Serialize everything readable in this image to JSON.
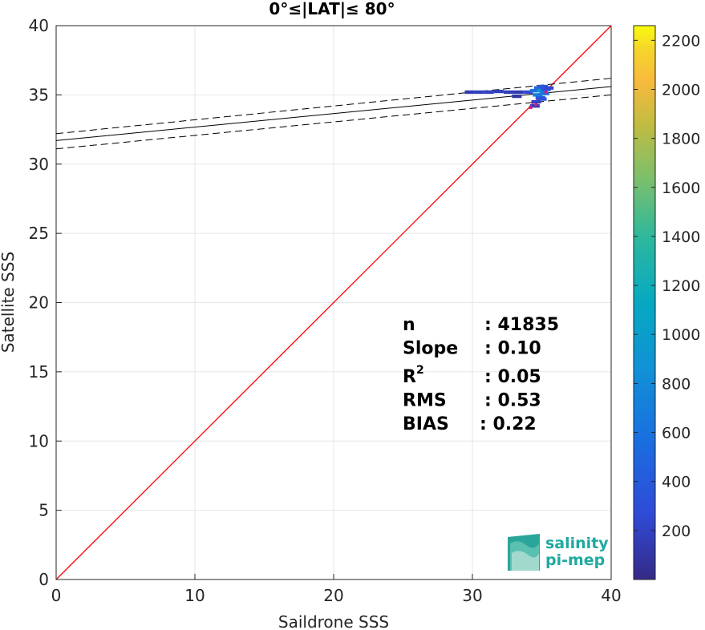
{
  "chart_data": {
    "type": "heatmap",
    "title": "0°≤|LAT|≤ 80°",
    "xlabel": "Saildrone SSS",
    "ylabel": "Satellite SSS",
    "xlim": [
      0,
      40
    ],
    "ylim": [
      0,
      40
    ],
    "xticks": [
      0,
      10,
      20,
      30,
      40
    ],
    "yticks": [
      0,
      5,
      10,
      15,
      20,
      25,
      30,
      35,
      40
    ],
    "grid": true,
    "one_to_one_line": {
      "color": "#ff0000",
      "x": [
        0,
        40
      ],
      "y": [
        0,
        40
      ]
    },
    "regression_line": {
      "x": [
        0,
        40
      ],
      "y": [
        31.7,
        35.6
      ],
      "color": "#000000"
    },
    "regression_bounds": [
      {
        "x": [
          0,
          40
        ],
        "y": [
          32.2,
          36.2
        ],
        "style": "dashed"
      },
      {
        "x": [
          0,
          40
        ],
        "y": [
          31.1,
          35.0
        ],
        "style": "dashed"
      }
    ],
    "density_cells": [
      {
        "x": 29.8,
        "y": 35.2,
        "count": 150
      },
      {
        "x": 30.5,
        "y": 35.2,
        "count": 180
      },
      {
        "x": 31.2,
        "y": 35.2,
        "count": 200
      },
      {
        "x": 31.9,
        "y": 35.25,
        "count": 180
      },
      {
        "x": 32.6,
        "y": 35.2,
        "count": 160
      },
      {
        "x": 33.3,
        "y": 35.2,
        "count": 140
      },
      {
        "x": 34.0,
        "y": 35.2,
        "count": 250
      },
      {
        "x": 34.5,
        "y": 35.3,
        "count": 600
      },
      {
        "x": 34.7,
        "y": 35.0,
        "count": 700
      },
      {
        "x": 34.8,
        "y": 35.5,
        "count": 500
      },
      {
        "x": 34.9,
        "y": 34.8,
        "count": 450
      },
      {
        "x": 35.0,
        "y": 35.3,
        "count": 900
      },
      {
        "x": 35.1,
        "y": 35.6,
        "count": 400
      },
      {
        "x": 35.2,
        "y": 35.1,
        "count": 650
      },
      {
        "x": 35.3,
        "y": 35.4,
        "count": 300
      },
      {
        "x": 35.5,
        "y": 35.5,
        "count": 250
      },
      {
        "x": 34.6,
        "y": 34.5,
        "count": 200
      },
      {
        "x": 34.5,
        "y": 34.2,
        "count": 150
      },
      {
        "x": 35.0,
        "y": 34.7,
        "count": 350
      },
      {
        "x": 33.2,
        "y": 34.9,
        "count": 100
      }
    ],
    "colorbar": {
      "min": 0,
      "max": 2260,
      "ticks": [
        200,
        400,
        600,
        800,
        1000,
        1200,
        1400,
        1600,
        1800,
        2000,
        2200
      ],
      "colormap": "parula"
    },
    "stats": [
      {
        "label": "n",
        "sep": ": 41835"
      },
      {
        "label": "Slope",
        "sep": ": 0.10"
      },
      {
        "label": "R",
        "sup": "2",
        "sep": ": 0.05"
      },
      {
        "label": "RMS",
        "sep": ": 0.53"
      },
      {
        "label": "BIAS",
        "sep": ": 0.22"
      }
    ]
  },
  "logo": {
    "line1": "salinity",
    "line2": "pi-mep"
  },
  "colors": {
    "one_to_one": "#ff0000",
    "grid": "#e6e6e6",
    "axis": "#262626",
    "logo": "#1fa9a0"
  }
}
